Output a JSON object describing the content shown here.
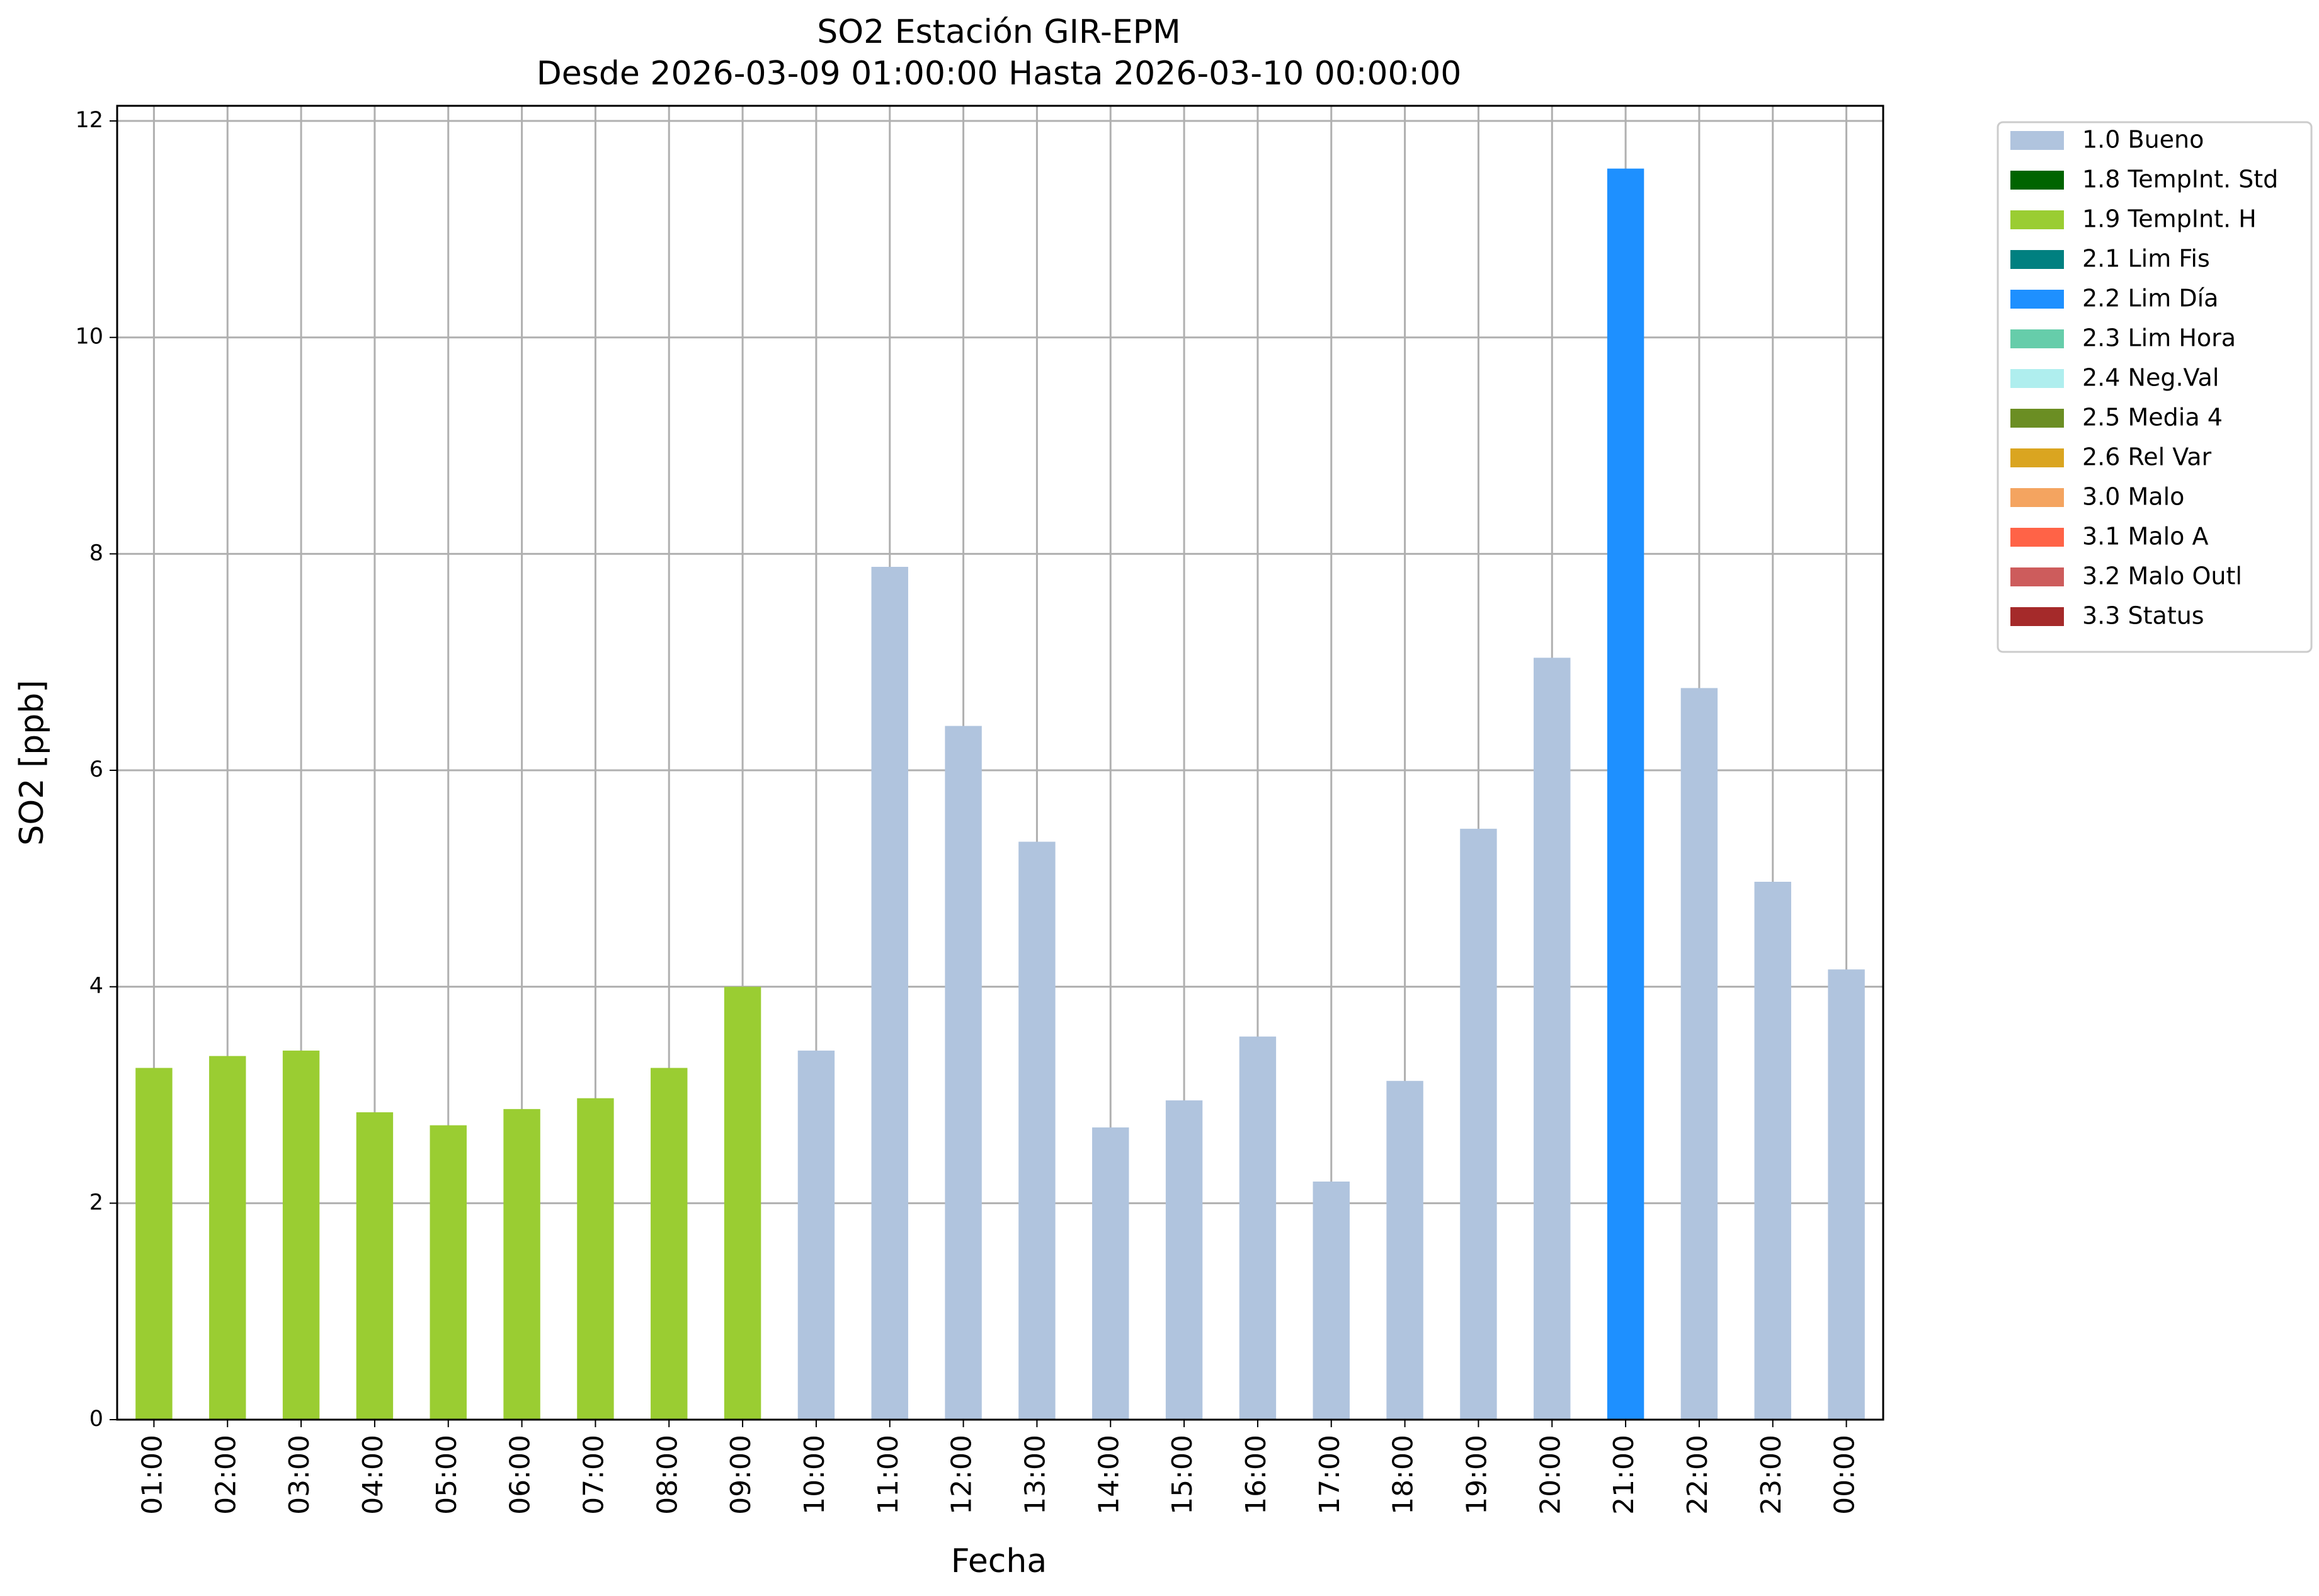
{
  "chart_data": {
    "type": "bar",
    "title": "SO2 Estación GIR-EPM",
    "subtitle": "Desde 2026-03-09 01:00:00 Hasta 2026-03-10 00:00:00",
    "x_label": "Fecha",
    "y_label": "SO2 [ppb]",
    "categories": [
      "01:00",
      "02:00",
      "03:00",
      "04:00",
      "05:00",
      "06:00",
      "07:00",
      "08:00",
      "09:00",
      "10:00",
      "11:00",
      "12:00",
      "13:00",
      "14:00",
      "15:00",
      "16:00",
      "17:00",
      "18:00",
      "19:00",
      "20:00",
      "21:00",
      "22:00",
      "23:00",
      "00:00"
    ],
    "series": [
      {
        "name": "1.0 Bueno",
        "color": "#b0c4de",
        "values": [
          null,
          null,
          null,
          null,
          null,
          null,
          null,
          null,
          null,
          3.41,
          7.88,
          6.41,
          5.34,
          2.7,
          2.95,
          3.54,
          2.2,
          3.13,
          5.46,
          7.04,
          null,
          6.76,
          4.97,
          4.16
        ]
      },
      {
        "name": "1.8 TempInt. Std",
        "color": "#006400",
        "values": [
          null,
          null,
          null,
          null,
          null,
          null,
          null,
          null,
          null,
          null,
          null,
          null,
          null,
          null,
          null,
          null,
          null,
          null,
          null,
          null,
          null,
          null,
          null,
          null
        ]
      },
      {
        "name": "1.9 TempInt. H",
        "color": "#9acd32",
        "values": [
          3.25,
          3.36,
          3.41,
          2.84,
          2.72,
          2.87,
          2.97,
          3.25,
          4.0,
          null,
          null,
          null,
          null,
          null,
          null,
          null,
          null,
          null,
          null,
          null,
          null,
          null,
          null,
          null
        ]
      },
      {
        "name": "2.1 Lim Fis",
        "color": "#008080",
        "values": [
          null,
          null,
          null,
          null,
          null,
          null,
          null,
          null,
          null,
          null,
          null,
          null,
          null,
          null,
          null,
          null,
          null,
          null,
          null,
          null,
          null,
          null,
          null,
          null
        ]
      },
      {
        "name": "2.2 Lim Día",
        "color": "#1e90ff",
        "values": [
          null,
          null,
          null,
          null,
          null,
          null,
          null,
          null,
          null,
          null,
          null,
          null,
          null,
          null,
          null,
          null,
          null,
          null,
          null,
          null,
          11.56,
          null,
          null,
          null
        ]
      },
      {
        "name": "2.3 Lim Hora",
        "color": "#66cdaa",
        "values": [
          null,
          null,
          null,
          null,
          null,
          null,
          null,
          null,
          null,
          null,
          null,
          null,
          null,
          null,
          null,
          null,
          null,
          null,
          null,
          null,
          null,
          null,
          null,
          null
        ]
      },
      {
        "name": "2.4 Neg.Val",
        "color": "#afeeee",
        "values": [
          null,
          null,
          null,
          null,
          null,
          null,
          null,
          null,
          null,
          null,
          null,
          null,
          null,
          null,
          null,
          null,
          null,
          null,
          null,
          null,
          null,
          null,
          null,
          null
        ]
      },
      {
        "name": "2.5 Media 4",
        "color": "#6b8e23",
        "values": [
          null,
          null,
          null,
          null,
          null,
          null,
          null,
          null,
          null,
          null,
          null,
          null,
          null,
          null,
          null,
          null,
          null,
          null,
          null,
          null,
          null,
          null,
          null,
          null
        ]
      },
      {
        "name": "2.6 Rel Var",
        "color": "#daa520",
        "values": [
          null,
          null,
          null,
          null,
          null,
          null,
          null,
          null,
          null,
          null,
          null,
          null,
          null,
          null,
          null,
          null,
          null,
          null,
          null,
          null,
          null,
          null,
          null,
          null
        ]
      },
      {
        "name": "3.0 Malo",
        "color": "#f4a460",
        "values": [
          null,
          null,
          null,
          null,
          null,
          null,
          null,
          null,
          null,
          null,
          null,
          null,
          null,
          null,
          null,
          null,
          null,
          null,
          null,
          null,
          null,
          null,
          null,
          null
        ]
      },
      {
        "name": "3.1 Malo A",
        "color": "#ff6347",
        "values": [
          null,
          null,
          null,
          null,
          null,
          null,
          null,
          null,
          null,
          null,
          null,
          null,
          null,
          null,
          null,
          null,
          null,
          null,
          null,
          null,
          null,
          null,
          null,
          null
        ]
      },
      {
        "name": "3.2 Malo Outl",
        "color": "#cd5c5c",
        "values": [
          null,
          null,
          null,
          null,
          null,
          null,
          null,
          null,
          null,
          null,
          null,
          null,
          null,
          null,
          null,
          null,
          null,
          null,
          null,
          null,
          null,
          null,
          null,
          null
        ]
      },
      {
        "name": "3.3 Status",
        "color": "#a52a2a",
        "values": [
          null,
          null,
          null,
          null,
          null,
          null,
          null,
          null,
          null,
          null,
          null,
          null,
          null,
          null,
          null,
          null,
          null,
          null,
          null,
          null,
          null,
          null,
          null,
          null
        ]
      }
    ],
    "ylim": [
      0,
      12.14
    ],
    "yticks": [
      0,
      2,
      4,
      6,
      8,
      10,
      12
    ],
    "grid": true,
    "legend": "outside right"
  }
}
